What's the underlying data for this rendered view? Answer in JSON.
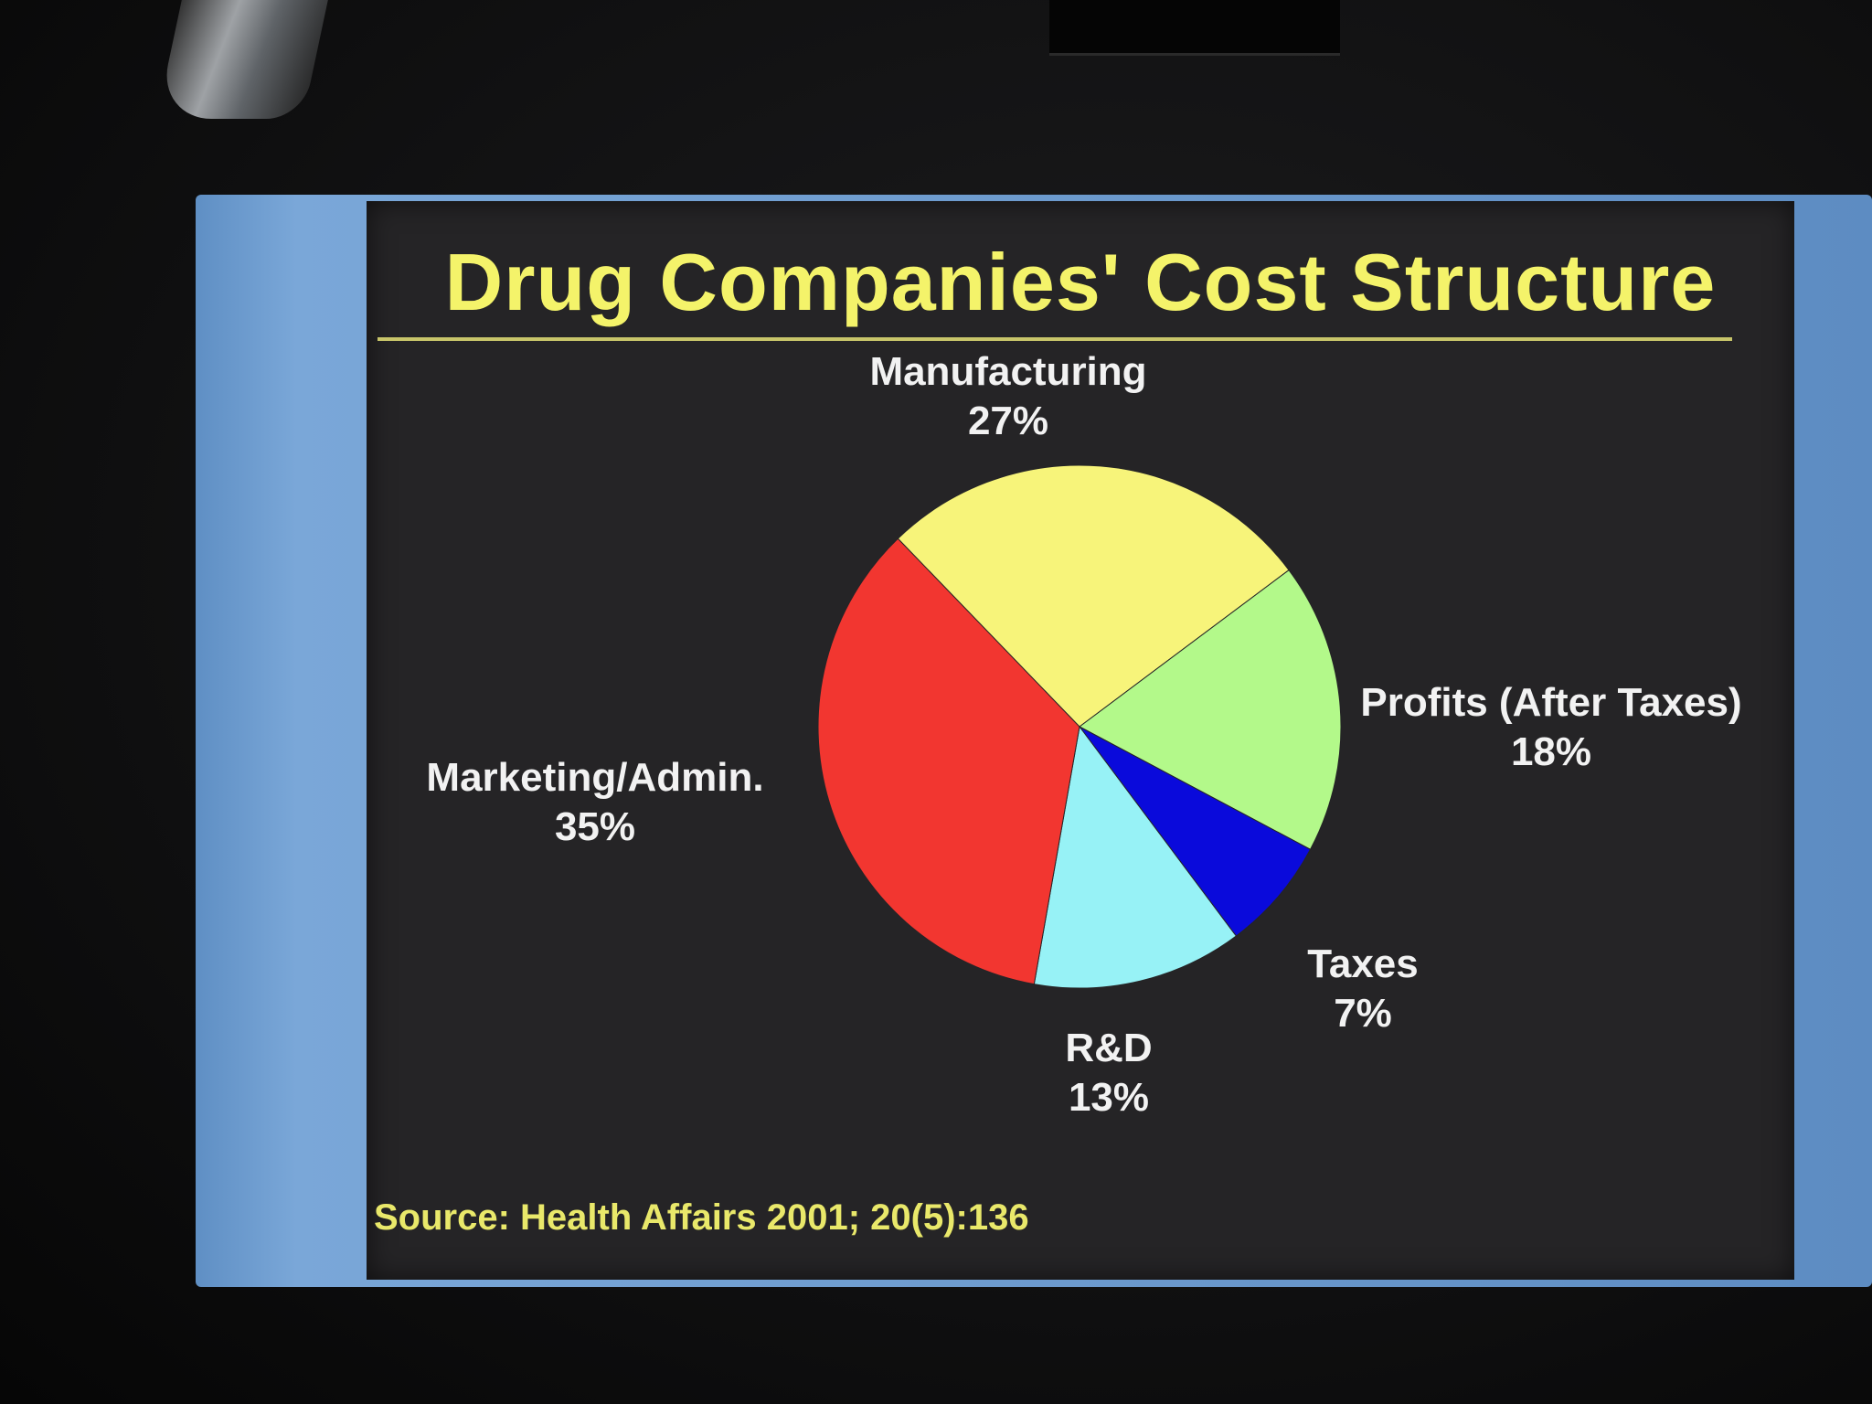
{
  "chart_data": {
    "type": "pie",
    "title": "Drug Companies' Cost Structure",
    "source": "Source: Health Affairs 2001; 20(5):136",
    "slices": [
      {
        "name": "Manufacturing",
        "label": "27%",
        "value": 27,
        "color": "#f7f47a"
      },
      {
        "name": "Profits (After Taxes)",
        "label": "18%",
        "value": 18,
        "color": "#b3f98a"
      },
      {
        "name": "Taxes",
        "label": "7%",
        "value": 7,
        "color": "#0a0adb"
      },
      {
        "name": "R&D",
        "label": "13%",
        "value": 13,
        "color": "#97f2f6"
      },
      {
        "name": "Marketing/Admin.",
        "label": "35%",
        "value": 35,
        "color": "#f23630"
      }
    ],
    "labels_outside": true
  }
}
